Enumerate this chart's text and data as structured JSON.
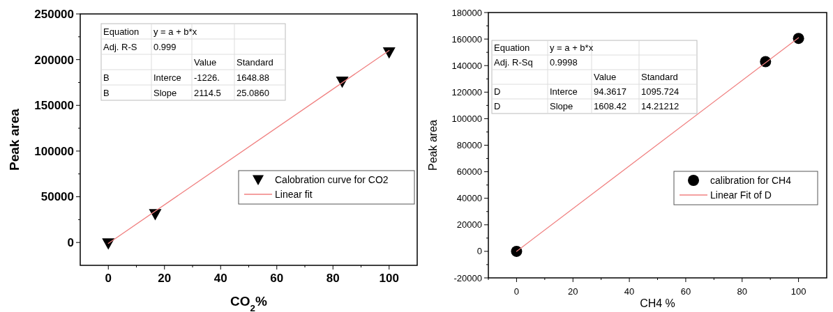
{
  "chart_data": [
    {
      "type": "scatter",
      "xlabel": "CO$_{2}$%",
      "ylabel": "Peak area",
      "xlim": [
        -10,
        110
      ],
      "ylim": [
        -25000,
        250000
      ],
      "xticks": [
        0,
        {
          "value": 10,
          "label": null
        },
        20,
        {
          "value": 30,
          "label": null
        },
        40,
        {
          "value": 50,
          "label": null
        },
        60,
        {
          "value": 70,
          "label": null
        },
        80,
        {
          "value": 90,
          "label": null
        },
        100
      ],
      "yticks": [
        0,
        {
          "value": 25000,
          "label": null
        },
        50000,
        {
          "value": 75000,
          "label": null
        },
        100000,
        {
          "value": 125000,
          "label": null
        },
        150000,
        {
          "value": 175000,
          "label": null
        },
        200000,
        {
          "value": 225000,
          "label": null
        },
        250000
      ],
      "series": [
        {
          "name": "Calobration curve for CO2",
          "marker": "triangle",
          "color": "#000000",
          "x": [
            0,
            16.7,
            83.3,
            100
          ],
          "values": [
            -1000,
            31000,
            176000,
            208000
          ]
        },
        {
          "name": "Linear fit",
          "type": "line",
          "color": "#f08080",
          "x": [
            0,
            100
          ],
          "values": [
            -1000,
            210000
          ]
        }
      ],
      "legend": "right",
      "annotations": [
        "Equation",
        "y = a + b*x",
        "Adj. R-S",
        "0.999",
        "Value",
        "Standard",
        "B",
        "Interce",
        "-1226.",
        "1648.88",
        "B",
        "Slope",
        "2114.5",
        "25.0860"
      ]
    },
    {
      "type": "scatter",
      "xlabel": "CH4 %",
      "ylabel": "Peak area",
      "xlim": [
        -10,
        110
      ],
      "ylim": [
        -20000,
        180000
      ],
      "xticks": [
        {
          "value": -10,
          "label": null
        },
        0,
        {
          "value": 10,
          "label": null
        },
        20,
        {
          "value": 30,
          "label": null
        },
        40,
        {
          "value": 50,
          "label": null
        },
        60,
        {
          "value": 70,
          "label": null
        },
        80,
        {
          "value": 90,
          "label": null
        },
        100
      ],
      "yticks": [
        -20000,
        {
          "value": -10000,
          "label": null
        },
        0,
        {
          "value": 10000,
          "label": null
        },
        20000,
        {
          "value": 30000,
          "label": null
        },
        40000,
        {
          "value": 50000,
          "label": null
        },
        60000,
        {
          "value": 70000,
          "label": null
        },
        80000,
        {
          "value": 90000,
          "label": null
        },
        100000,
        {
          "value": 110000,
          "label": null
        },
        120000,
        {
          "value": 130000,
          "label": null
        },
        140000,
        {
          "value": 150000,
          "label": null
        },
        160000,
        {
          "value": 170000,
          "label": null
        },
        180000
      ],
      "series": [
        {
          "name": "calibration for CH4",
          "marker": "circle",
          "color": "#000000",
          "x": [
            0,
            88.3,
            100
          ],
          "values": [
            0,
            143000,
            160500
          ]
        },
        {
          "name": "Linear Fit of D",
          "type": "line",
          "color": "#f08080",
          "x": [
            0,
            100
          ],
          "values": [
            0,
            161000
          ]
        }
      ],
      "legend": "right",
      "annotations": [
        "Equation",
        "y = a + b*x",
        "Adj. R-Sq",
        "0.9998",
        "Value",
        "Standard",
        "D",
        "Interce",
        "94.3617",
        "1095.724",
        "D",
        "Slope",
        "1608.42",
        "14.21212"
      ]
    }
  ]
}
